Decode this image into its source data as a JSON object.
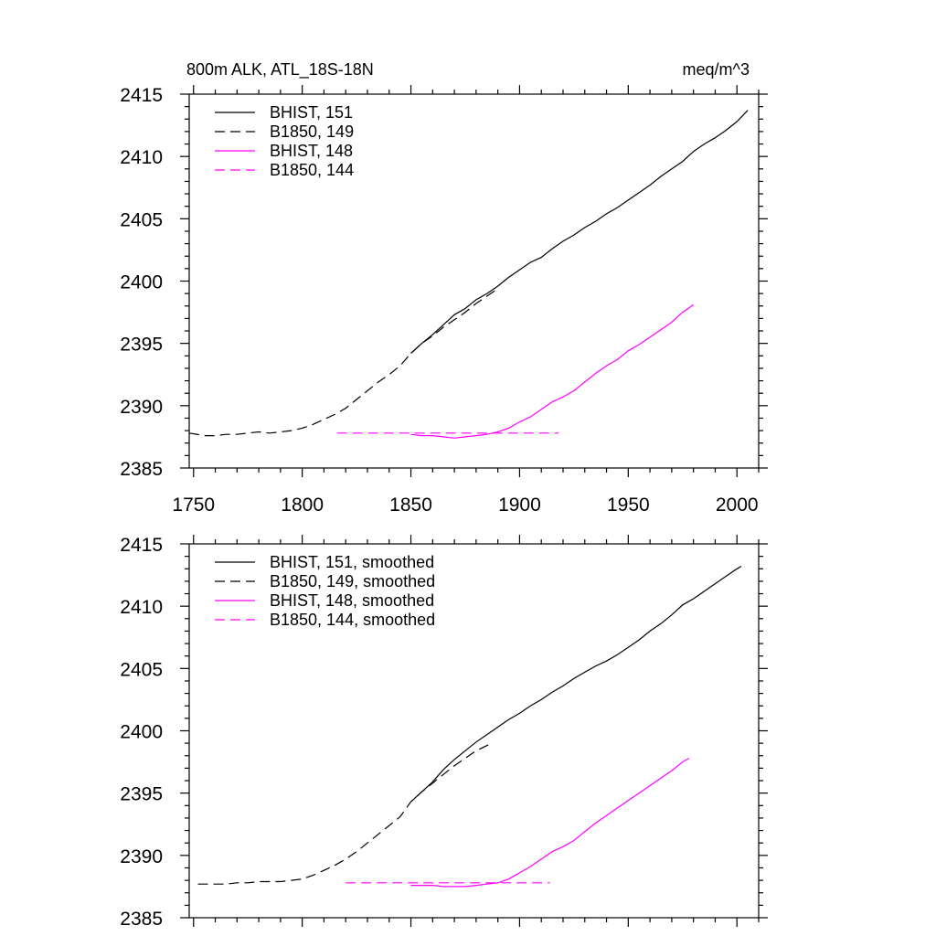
{
  "chart_data": [
    {
      "type": "line",
      "title": "800m ALK, ATL_18S-18N",
      "units": "meq/m^3",
      "xlim": [
        1748,
        2010
      ],
      "ylim": [
        2385,
        2415
      ],
      "x_ticks": [
        1750,
        1800,
        1850,
        1900,
        1950,
        2000
      ],
      "y_ticks": [
        2385,
        2390,
        2395,
        2400,
        2405,
        2410,
        2415
      ],
      "show_x_tick_labels": true,
      "grid": false,
      "legend_position": "top-left",
      "series": [
        {
          "name": "BHIST, 151",
          "color": "#000000",
          "dash": "solid",
          "x": [
            1850,
            1855,
            1860,
            1865,
            1870,
            1875,
            1880,
            1885,
            1890,
            1895,
            1900,
            1905,
            1910,
            1915,
            1920,
            1925,
            1930,
            1935,
            1940,
            1945,
            1950,
            1955,
            1960,
            1965,
            1970,
            1975,
            1980,
            1985,
            1990,
            1995,
            2000,
            2005
          ],
          "y": [
            2394.2,
            2395.0,
            2395.7,
            2396.5,
            2397.3,
            2397.8,
            2398.5,
            2399.0,
            2399.6,
            2400.3,
            2400.9,
            2401.5,
            2401.9,
            2402.6,
            2403.2,
            2403.7,
            2404.3,
            2404.8,
            2405.4,
            2405.9,
            2406.5,
            2407.1,
            2407.7,
            2408.4,
            2409.0,
            2409.6,
            2410.4,
            2411.0,
            2411.5,
            2412.1,
            2412.8,
            2413.7
          ]
        },
        {
          "name": "B1850, 149",
          "color": "#000000",
          "dash": "dashed",
          "x": [
            1748,
            1755,
            1760,
            1765,
            1770,
            1775,
            1780,
            1785,
            1790,
            1795,
            1800,
            1805,
            1810,
            1815,
            1820,
            1825,
            1830,
            1835,
            1840,
            1845,
            1850,
            1855,
            1860,
            1865,
            1870,
            1875,
            1880,
            1885,
            1890
          ],
          "y": [
            2387.8,
            2387.6,
            2387.6,
            2387.7,
            2387.7,
            2387.8,
            2387.9,
            2387.8,
            2387.9,
            2388.0,
            2388.2,
            2388.5,
            2388.9,
            2389.3,
            2389.8,
            2390.5,
            2391.2,
            2391.9,
            2392.5,
            2393.2,
            2394.2,
            2395.0,
            2395.6,
            2396.3,
            2396.9,
            2397.5,
            2398.2,
            2398.8,
            2399.4
          ]
        },
        {
          "name": "BHIST, 148",
          "color": "#ff00ff",
          "dash": "solid",
          "x": [
            1850,
            1855,
            1860,
            1865,
            1870,
            1875,
            1880,
            1885,
            1890,
            1895,
            1900,
            1905,
            1910,
            1915,
            1920,
            1925,
            1930,
            1935,
            1940,
            1945,
            1950,
            1955,
            1960,
            1965,
            1970,
            1975,
            1980
          ],
          "y": [
            2387.7,
            2387.6,
            2387.6,
            2387.5,
            2387.4,
            2387.5,
            2387.6,
            2387.7,
            2387.9,
            2388.2,
            2388.7,
            2389.1,
            2389.7,
            2390.3,
            2390.7,
            2391.2,
            2391.9,
            2392.6,
            2393.2,
            2393.7,
            2394.4,
            2394.9,
            2395.5,
            2396.1,
            2396.7,
            2397.5,
            2398.1
          ]
        },
        {
          "name": "B1850, 144",
          "color": "#ff00ff",
          "dash": "dashed",
          "x": [
            1816,
            1825,
            1835,
            1845,
            1855,
            1865,
            1875,
            1885,
            1895,
            1905,
            1918
          ],
          "y": [
            2387.8,
            2387.8,
            2387.8,
            2387.8,
            2387.8,
            2387.8,
            2387.8,
            2387.8,
            2387.8,
            2387.8,
            2387.8
          ]
        }
      ]
    },
    {
      "type": "line",
      "title": "",
      "units": "",
      "xlim": [
        1748,
        2010
      ],
      "ylim": [
        2385,
        2415
      ],
      "x_ticks": [
        1750,
        1800,
        1850,
        1900,
        1950,
        2000
      ],
      "y_ticks": [
        2385,
        2390,
        2395,
        2400,
        2405,
        2410,
        2415
      ],
      "show_x_tick_labels": false,
      "grid": false,
      "legend_position": "top-left",
      "series": [
        {
          "name": "BHIST, 151, smoothed",
          "color": "#000000",
          "dash": "solid",
          "x": [
            1850,
            1855,
            1860,
            1865,
            1870,
            1875,
            1880,
            1885,
            1890,
            1895,
            1900,
            1905,
            1910,
            1915,
            1920,
            1925,
            1930,
            1935,
            1940,
            1945,
            1950,
            1955,
            1960,
            1965,
            1970,
            1975,
            1980,
            1985,
            1990,
            1995,
            2000,
            2002
          ],
          "y": [
            2394.3,
            2395.1,
            2395.9,
            2396.9,
            2397.7,
            2398.4,
            2399.1,
            2399.7,
            2400.3,
            2400.9,
            2401.4,
            2402.0,
            2402.5,
            2403.1,
            2403.6,
            2404.2,
            2404.7,
            2405.2,
            2405.6,
            2406.1,
            2406.7,
            2407.3,
            2408.0,
            2408.6,
            2409.3,
            2410.1,
            2410.6,
            2411.2,
            2411.8,
            2412.4,
            2413.0,
            2413.2
          ]
        },
        {
          "name": "B1850, 149, smoothed",
          "color": "#000000",
          "dash": "dashed",
          "x": [
            1752,
            1760,
            1765,
            1770,
            1775,
            1780,
            1785,
            1790,
            1795,
            1800,
            1805,
            1810,
            1815,
            1820,
            1825,
            1830,
            1835,
            1840,
            1845,
            1850,
            1855,
            1860,
            1865,
            1870,
            1875,
            1880,
            1886
          ],
          "y": [
            2387.7,
            2387.7,
            2387.7,
            2387.8,
            2387.8,
            2387.9,
            2387.9,
            2387.9,
            2388.0,
            2388.1,
            2388.4,
            2388.8,
            2389.2,
            2389.7,
            2390.3,
            2391.0,
            2391.7,
            2392.4,
            2393.1,
            2394.3,
            2395.1,
            2395.8,
            2396.5,
            2397.2,
            2397.8,
            2398.4,
            2398.9
          ]
        },
        {
          "name": "BHIST, 148, smoothed",
          "color": "#ff00ff",
          "dash": "solid",
          "x": [
            1850,
            1855,
            1860,
            1865,
            1870,
            1875,
            1880,
            1885,
            1890,
            1895,
            1900,
            1905,
            1910,
            1915,
            1920,
            1925,
            1930,
            1935,
            1940,
            1945,
            1950,
            1955,
            1960,
            1965,
            1970,
            1975,
            1978
          ],
          "y": [
            2387.6,
            2387.6,
            2387.6,
            2387.5,
            2387.5,
            2387.5,
            2387.6,
            2387.7,
            2387.8,
            2388.1,
            2388.6,
            2389.1,
            2389.7,
            2390.3,
            2390.7,
            2391.2,
            2391.9,
            2392.6,
            2393.2,
            2393.8,
            2394.4,
            2395.0,
            2395.6,
            2396.2,
            2396.8,
            2397.5,
            2397.8
          ]
        },
        {
          "name": "B1850, 144, smoothed",
          "color": "#ff00ff",
          "dash": "dashed",
          "x": [
            1820,
            1830,
            1840,
            1850,
            1860,
            1870,
            1880,
            1890,
            1900,
            1914
          ],
          "y": [
            2387.8,
            2387.8,
            2387.8,
            2387.8,
            2387.8,
            2387.8,
            2387.8,
            2387.8,
            2387.8,
            2387.8
          ]
        }
      ]
    }
  ]
}
